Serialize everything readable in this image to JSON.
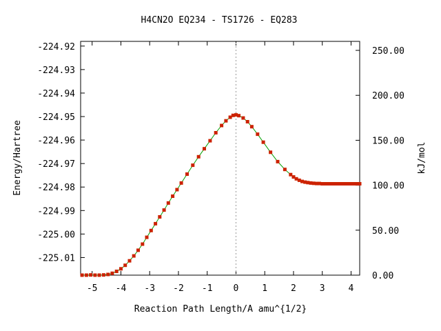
{
  "chart_data": {
    "type": "line",
    "title": "H4CN2O   EQ234 - TS1726 - EQ283",
    "xlabel": "Reaction Path Length/A amu^{1/2}",
    "ylabel": "Energy/Hartree",
    "y2label": "kJ/mol",
    "xlim": [
      -5.4,
      4.3
    ],
    "ylim": [
      -225.0175,
      -224.918
    ],
    "y2lim": [
      0,
      260
    ],
    "x_ticks": [
      -5,
      -4,
      -3,
      -2,
      -1,
      0,
      1,
      2,
      3,
      4
    ],
    "x_tick_labels": [
      "-5",
      "-4",
      "-3",
      "-2",
      "-1",
      "0",
      "1",
      "2",
      "3",
      "4"
    ],
    "y_ticks": [
      -224.92,
      -224.93,
      -224.94,
      -224.95,
      -224.96,
      -224.97,
      -224.98,
      -224.99,
      -225.0,
      -225.01
    ],
    "y_tick_labels": [
      "-224.92",
      "-224.93",
      "-224.94",
      "-224.95",
      "-224.96",
      "-224.97",
      "-224.98",
      "-224.99",
      "-225.00",
      "-225.01"
    ],
    "y2_ticks": [
      0,
      50,
      100,
      150,
      200,
      250
    ],
    "y2_tick_labels": [
      "0.00",
      "50.00",
      "100.00",
      "150.00",
      "200.00",
      "250.00"
    ],
    "ts_marker_x": 0,
    "line_color": "#00a000",
    "marker_color": "#cc2200",
    "grid": false,
    "series": [
      {
        "x": [
          -5.35,
          -5.2,
          -5.05,
          -4.9,
          -4.75,
          -4.6,
          -4.45,
          -4.3,
          -4.15,
          -4.0,
          -3.85,
          -3.7,
          -3.55,
          -3.4,
          -3.25,
          -3.1,
          -2.95,
          -2.8,
          -2.65,
          -2.5,
          -2.35,
          -2.2,
          -2.05,
          -1.9,
          -1.7,
          -1.5,
          -1.3,
          -1.1,
          -0.9,
          -0.7,
          -0.5,
          -0.35,
          -0.2,
          -0.1,
          0.0,
          0.1,
          0.25,
          0.4,
          0.55,
          0.75,
          0.95,
          1.2,
          1.45,
          1.7,
          1.9,
          2.0,
          2.1,
          2.2,
          2.3,
          2.4,
          2.5,
          2.6,
          2.7,
          2.8,
          2.9,
          3.0,
          3.1,
          3.2,
          3.3,
          3.4,
          3.5,
          3.6,
          3.7,
          3.8,
          3.9,
          4.0,
          4.1,
          4.2,
          4.3
        ],
        "y": [
          -225.0175,
          -225.0175,
          -225.0174,
          -225.0175,
          -225.0175,
          -225.0174,
          -225.0172,
          -225.0167,
          -225.0159,
          -225.0148,
          -225.0133,
          -225.0114,
          -225.0093,
          -225.0069,
          -225.0043,
          -225.0014,
          -224.9985,
          -224.9956,
          -224.9927,
          -224.9898,
          -224.9868,
          -224.9839,
          -224.9811,
          -224.9783,
          -224.9745,
          -224.9707,
          -224.9671,
          -224.9637,
          -224.9603,
          -224.9569,
          -224.9538,
          -224.9518,
          -224.9503,
          -224.9495,
          -224.9493,
          -224.9496,
          -224.9506,
          -224.9522,
          -224.9543,
          -224.9575,
          -224.9609,
          -224.9652,
          -224.9692,
          -224.9725,
          -224.9747,
          -224.9757,
          -224.9765,
          -224.9771,
          -224.9776,
          -224.9779,
          -224.9781,
          -224.9783,
          -224.9784,
          -224.9785,
          -224.9785,
          -224.9786,
          -224.9786,
          -224.9786,
          -224.9786,
          -224.9786,
          -224.9786,
          -224.9786,
          -224.9786,
          -224.9786,
          -224.9786,
          -224.9786,
          -224.9786,
          -224.9786,
          -224.9786
        ]
      }
    ]
  }
}
